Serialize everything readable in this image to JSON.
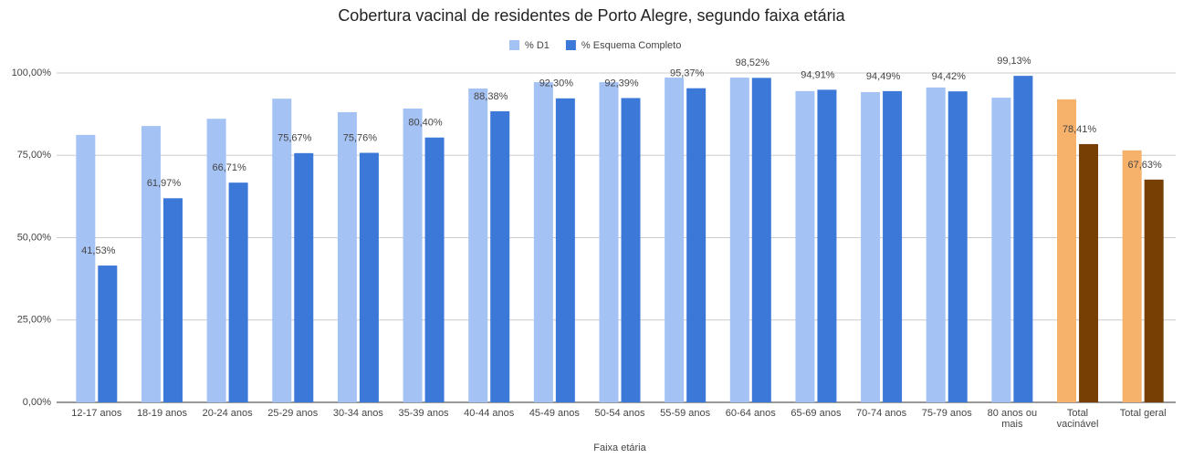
{
  "chart_data": {
    "type": "bar",
    "title": "Cobertura vacinal de residentes de Porto Alegre, segundo faixa etária",
    "x_label": "Faixa etária",
    "categories": [
      "12-17 anos",
      "18-19 anos",
      "20-24 anos",
      "25-29 anos",
      "30-34 anos",
      "35-39 anos",
      "40-44 anos",
      "45-49 anos",
      "50-54 anos",
      "55-59 anos",
      "60-64 anos",
      "65-69 anos",
      "70-74 anos",
      "75-79 anos",
      "80 anos ou mais",
      "Total vacinável",
      "Total geral"
    ],
    "series": [
      {
        "name": "% D1",
        "color": "#a4c2f4",
        "colors": [
          "#a4c2f4",
          "#a4c2f4",
          "#a4c2f4",
          "#a4c2f4",
          "#a4c2f4",
          "#a4c2f4",
          "#a4c2f4",
          "#a4c2f4",
          "#a4c2f4",
          "#a4c2f4",
          "#a4c2f4",
          "#a4c2f4",
          "#a4c2f4",
          "#a4c2f4",
          "#a4c2f4",
          "#f6b26b",
          "#f6b26b"
        ],
        "values": [
          81.2,
          83.9,
          86.1,
          92.2,
          88.1,
          89.2,
          95.3,
          97.2,
          97.2,
          98.6,
          98.6,
          94.5,
          94.2,
          95.6,
          92.5,
          92.0,
          76.5
        ]
      },
      {
        "name": "% Esquema Completo",
        "color": "#3c78d8",
        "colors": [
          "#3c78d8",
          "#3c78d8",
          "#3c78d8",
          "#3c78d8",
          "#3c78d8",
          "#3c78d8",
          "#3c78d8",
          "#3c78d8",
          "#3c78d8",
          "#3c78d8",
          "#3c78d8",
          "#3c78d8",
          "#3c78d8",
          "#3c78d8",
          "#3c78d8",
          "#783f04",
          "#783f04"
        ],
        "label_colors": [
          "#4a86e8",
          "#4a86e8",
          "#4a86e8",
          "#4a86e8",
          "#4a86e8",
          "#4a86e8",
          "#4a86e8",
          "#4a86e8",
          "#4a86e8",
          "#4a86e8",
          "#4a86e8",
          "#4a86e8",
          "#4a86e8",
          "#4a86e8",
          "#4a86e8",
          "#8b5a2b",
          "#8b5a2b"
        ],
        "values": [
          41.53,
          61.97,
          66.71,
          75.67,
          75.76,
          80.4,
          88.38,
          92.3,
          92.39,
          95.37,
          98.52,
          94.91,
          94.49,
          94.42,
          99.13,
          78.41,
          67.63
        ],
        "value_labels": [
          "41,53%",
          "61,97%",
          "66,71%",
          "75,67%",
          "75,76%",
          "80,40%",
          "88,38%",
          "92,30%",
          "92,39%",
          "95,37%",
          "98,52%",
          "94,91%",
          "94,49%",
          "94,42%",
          "99,13%",
          "78,41%",
          "67,63%"
        ]
      }
    ],
    "ylim": [
      0,
      100
    ],
    "yticks": [
      {
        "value": 0,
        "label": "0,00%"
      },
      {
        "value": 25,
        "label": "25,00%"
      },
      {
        "value": 50,
        "label": "50,00%"
      },
      {
        "value": 75,
        "label": "75,00%"
      },
      {
        "value": 100,
        "label": "100,00%"
      }
    ],
    "grid": true,
    "legend": "top"
  }
}
